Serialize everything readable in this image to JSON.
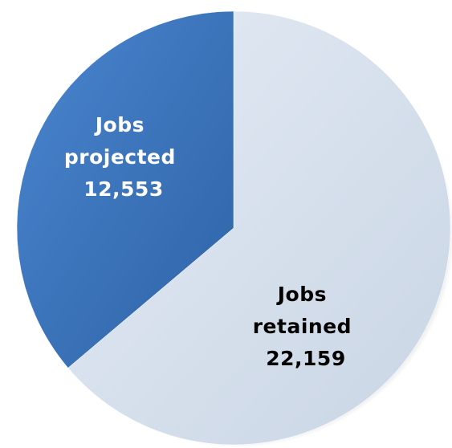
{
  "chart_data": {
    "type": "pie",
    "slices": [
      {
        "label_line1": "Jobs",
        "label_line2": "retained",
        "value_text": "22,159",
        "value": 22159,
        "color": "#d6dfeb",
        "label_color": "#000000"
      },
      {
        "label_line1": "Jobs",
        "label_line2": "projected",
        "value_text": "12,553",
        "value": 12553,
        "color": "#3f78bd",
        "label_color": "#ffffff"
      }
    ],
    "start": "12 o'clock",
    "direction": "clockwise",
    "title": "",
    "legend": "none"
  }
}
